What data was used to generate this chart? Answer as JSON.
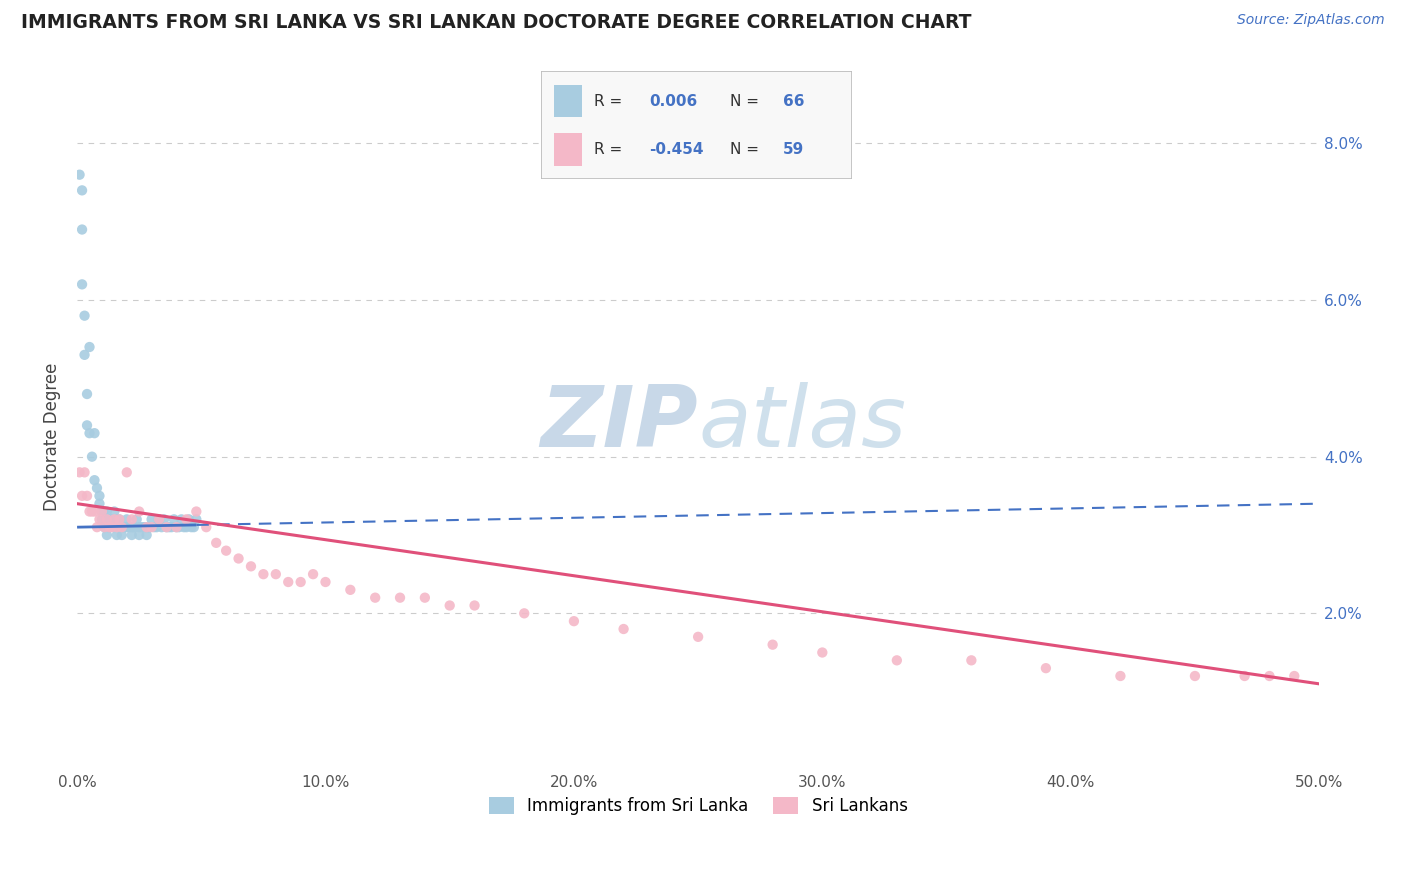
{
  "title": "IMMIGRANTS FROM SRI LANKA VS SRI LANKAN DOCTORATE DEGREE CORRELATION CHART",
  "source": "Source: ZipAtlas.com",
  "ylabel": "Doctorate Degree",
  "legend1_label": "Immigrants from Sri Lanka",
  "legend2_label": "Sri Lankans",
  "r1": "0.006",
  "n1": "66",
  "r2": "-0.454",
  "n2": "59",
  "color_blue": "#a8cce0",
  "color_pink": "#f4b8c8",
  "line_blue": "#4472c4",
  "line_pink": "#e0507a",
  "watermark_color": "#c8d8e8",
  "title_color": "#222222",
  "source_color": "#4472c4",
  "tick_color_y": "#4472c4",
  "tick_color_x": "#555555",
  "grid_color": "#cccccc",
  "legend_text_color_label": "#333333",
  "legend_text_color_val": "#4472c4",
  "background_color": "#ffffff",
  "blue_dots_x": [
    0.001,
    0.002,
    0.002,
    0.002,
    0.003,
    0.003,
    0.004,
    0.004,
    0.005,
    0.005,
    0.006,
    0.007,
    0.007,
    0.008,
    0.009,
    0.009,
    0.01,
    0.01,
    0.011,
    0.011,
    0.012,
    0.012,
    0.013,
    0.013,
    0.014,
    0.015,
    0.015,
    0.016,
    0.016,
    0.017,
    0.018,
    0.018,
    0.019,
    0.02,
    0.02,
    0.021,
    0.022,
    0.022,
    0.023,
    0.024,
    0.025,
    0.025,
    0.026,
    0.027,
    0.028,
    0.028,
    0.029,
    0.03,
    0.031,
    0.032,
    0.033,
    0.034,
    0.035,
    0.036,
    0.037,
    0.038,
    0.039,
    0.04,
    0.041,
    0.042,
    0.043,
    0.044,
    0.045,
    0.046,
    0.047,
    0.048
  ],
  "blue_dots_y": [
    0.076,
    0.074,
    0.069,
    0.062,
    0.058,
    0.053,
    0.048,
    0.044,
    0.054,
    0.043,
    0.04,
    0.043,
    0.037,
    0.036,
    0.035,
    0.034,
    0.033,
    0.032,
    0.033,
    0.031,
    0.033,
    0.03,
    0.032,
    0.031,
    0.032,
    0.033,
    0.031,
    0.032,
    0.03,
    0.032,
    0.031,
    0.03,
    0.031,
    0.032,
    0.031,
    0.031,
    0.03,
    0.031,
    0.031,
    0.032,
    0.031,
    0.03,
    0.031,
    0.031,
    0.03,
    0.031,
    0.031,
    0.032,
    0.031,
    0.031,
    0.032,
    0.031,
    0.032,
    0.031,
    0.031,
    0.031,
    0.032,
    0.031,
    0.031,
    0.032,
    0.031,
    0.031,
    0.032,
    0.031,
    0.031,
    0.032
  ],
  "pink_dots_x": [
    0.001,
    0.002,
    0.003,
    0.004,
    0.005,
    0.006,
    0.007,
    0.008,
    0.009,
    0.01,
    0.011,
    0.012,
    0.013,
    0.014,
    0.015,
    0.016,
    0.017,
    0.018,
    0.02,
    0.022,
    0.025,
    0.028,
    0.03,
    0.033,
    0.036,
    0.04,
    0.044,
    0.048,
    0.052,
    0.056,
    0.06,
    0.065,
    0.07,
    0.075,
    0.08,
    0.085,
    0.09,
    0.095,
    0.1,
    0.11,
    0.12,
    0.13,
    0.14,
    0.15,
    0.16,
    0.18,
    0.2,
    0.22,
    0.25,
    0.28,
    0.3,
    0.33,
    0.36,
    0.39,
    0.42,
    0.45,
    0.47,
    0.48,
    0.49
  ],
  "pink_dots_y": [
    0.038,
    0.035,
    0.038,
    0.035,
    0.033,
    0.033,
    0.033,
    0.031,
    0.032,
    0.033,
    0.031,
    0.032,
    0.031,
    0.031,
    0.032,
    0.031,
    0.032,
    0.031,
    0.038,
    0.032,
    0.033,
    0.031,
    0.031,
    0.032,
    0.031,
    0.031,
    0.032,
    0.033,
    0.031,
    0.029,
    0.028,
    0.027,
    0.026,
    0.025,
    0.025,
    0.024,
    0.024,
    0.025,
    0.024,
    0.023,
    0.022,
    0.022,
    0.022,
    0.021,
    0.021,
    0.02,
    0.019,
    0.018,
    0.017,
    0.016,
    0.015,
    0.014,
    0.014,
    0.013,
    0.012,
    0.012,
    0.012,
    0.012,
    0.012
  ],
  "xlim": [
    0.0,
    0.5
  ],
  "ylim": [
    0.0,
    0.085
  ],
  "xtick_vals": [
    0.0,
    0.1,
    0.2,
    0.3,
    0.4,
    0.5
  ],
  "ytick_vals": [
    0.02,
    0.04,
    0.06,
    0.08
  ],
  "blue_line_solid_end": 0.048,
  "blue_line_dash_end": 0.5,
  "blue_line_y_start": 0.031,
  "blue_line_y_end": 0.034,
  "pink_line_x_start": 0.0,
  "pink_line_x_end": 0.5,
  "pink_line_y_start": 0.034,
  "pink_line_y_end": 0.011
}
